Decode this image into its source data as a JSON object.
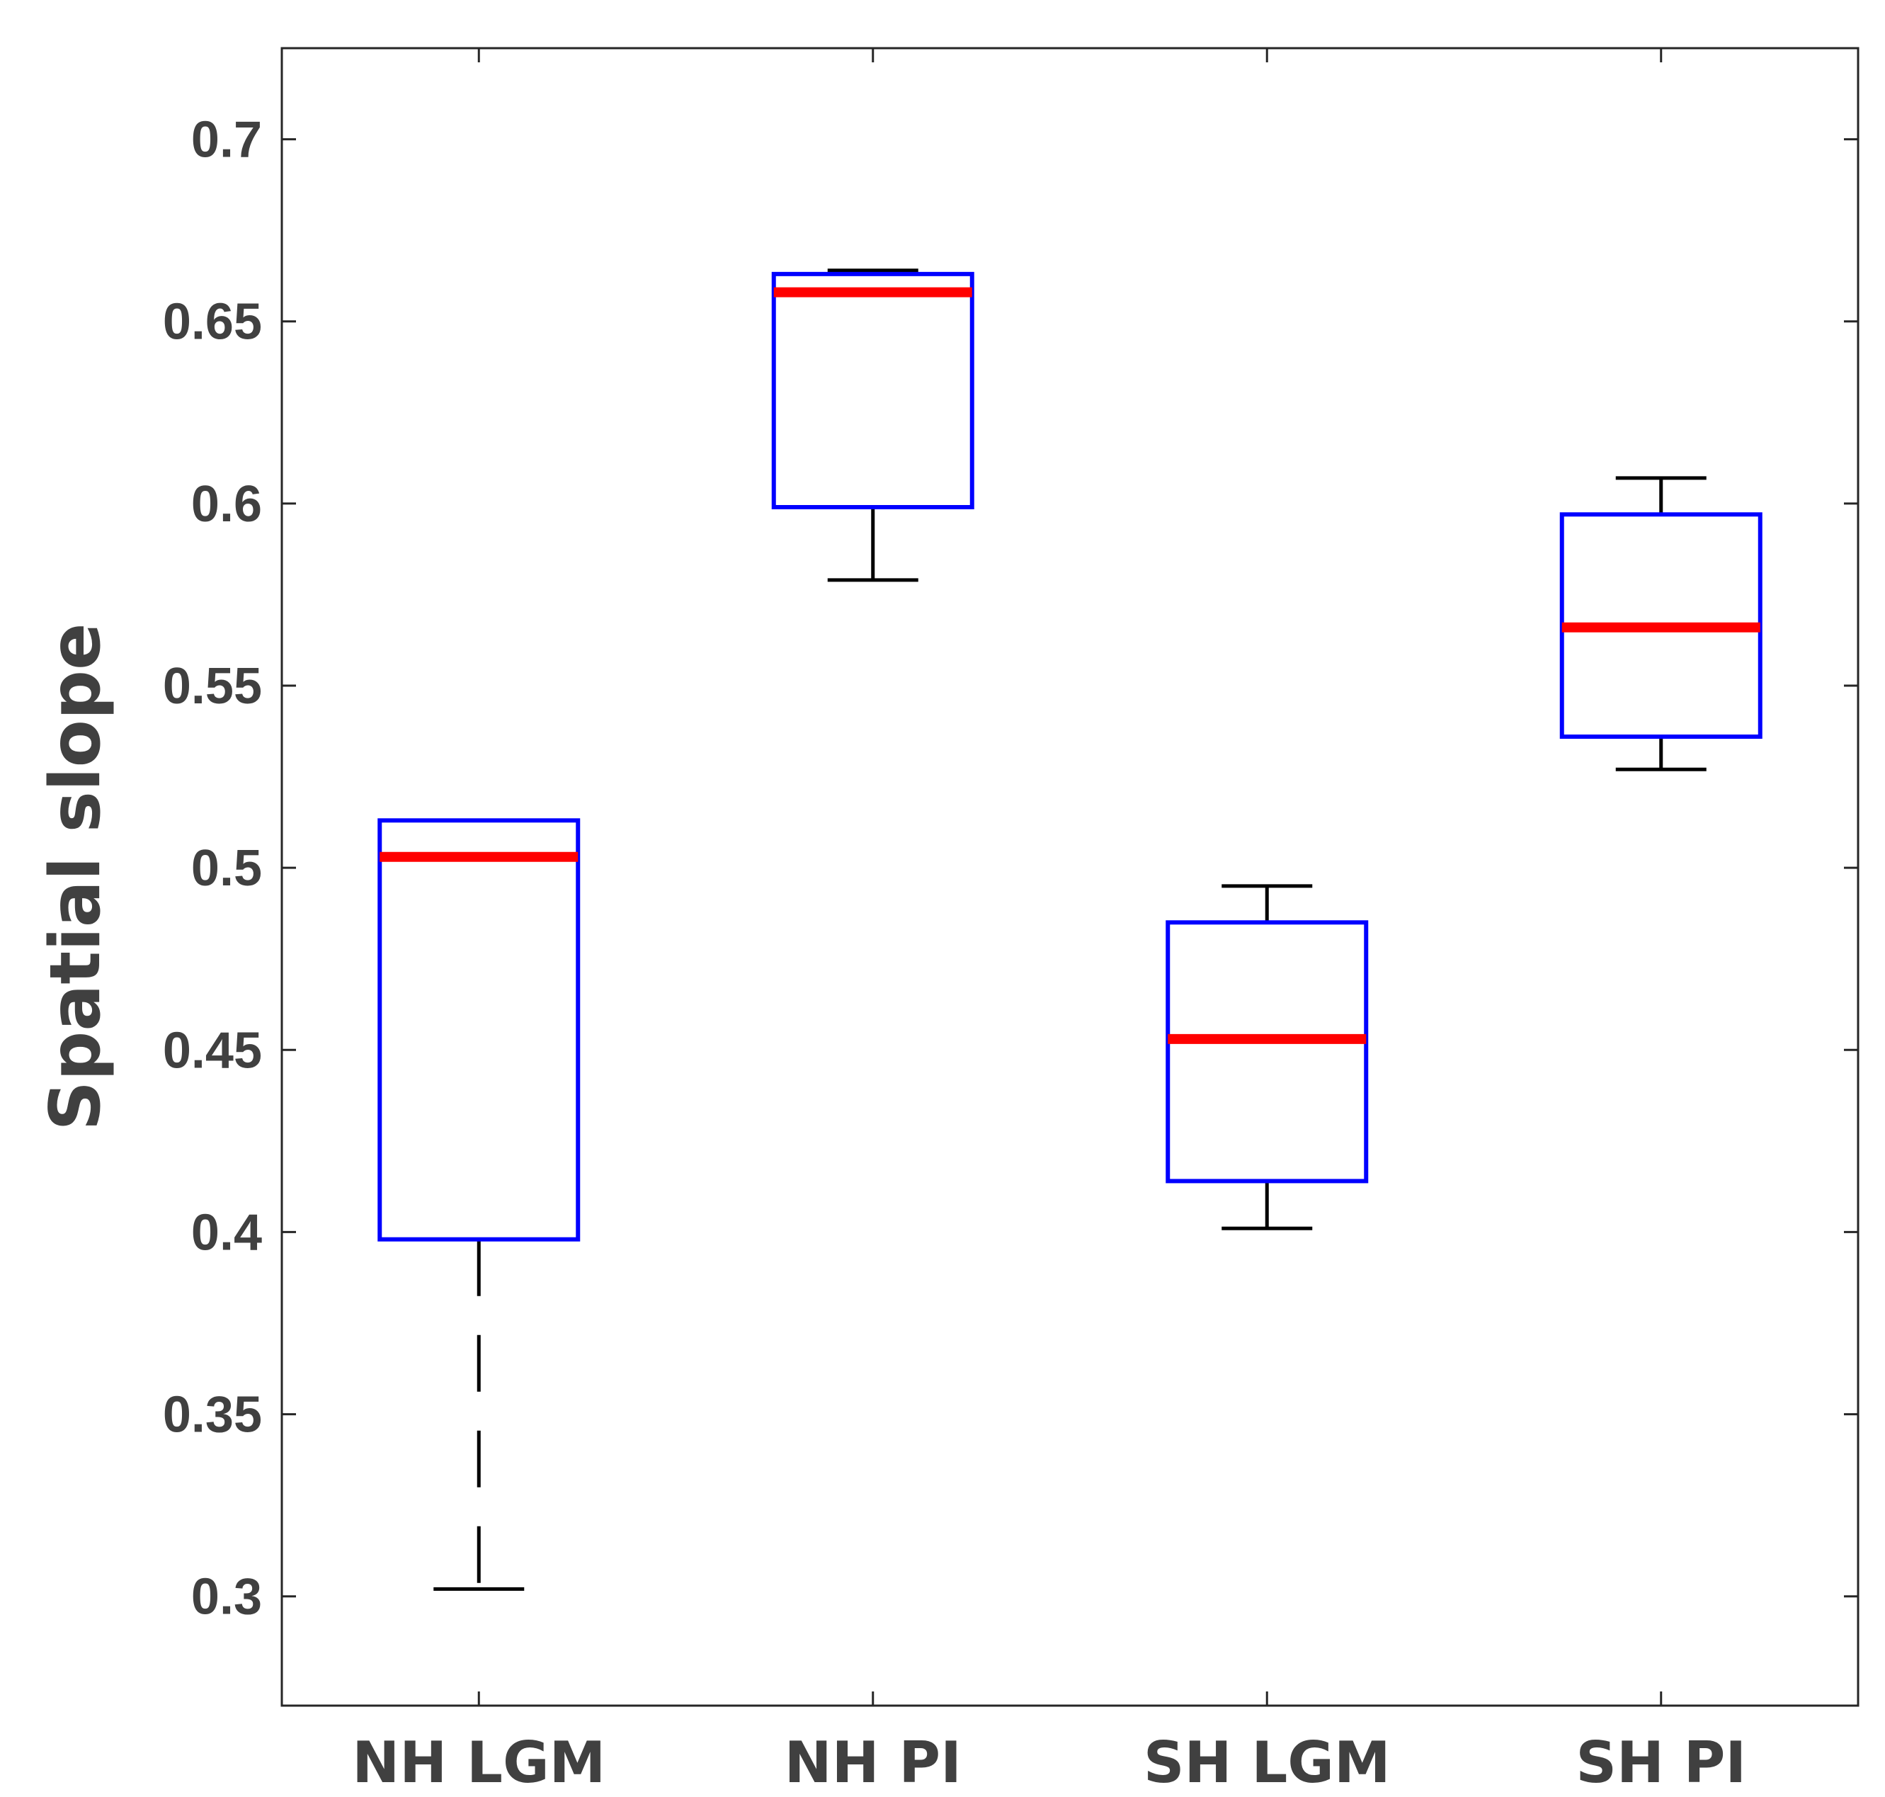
{
  "chart_data": {
    "type": "box",
    "title": "",
    "xlabel": "",
    "ylabel": "Spatial slope",
    "ylim": [
      0.27,
      0.725
    ],
    "yticks": [
      "0.3",
      "0.35",
      "0.4",
      "0.45",
      "0.5",
      "0.55",
      "0.6",
      "0.65",
      "0.7"
    ],
    "categories": [
      "NH LGM",
      "NH PI",
      "SH LGM",
      "SH PI"
    ],
    "boxes": [
      {
        "name": "NH LGM",
        "whisker_low": 0.302,
        "q1": 0.398,
        "median": 0.503,
        "q3": 0.513,
        "whisker_high": 0.513,
        "lower_whisker_style": "dashed"
      },
      {
        "name": "NH PI",
        "whisker_low": 0.579,
        "q1": 0.599,
        "median": 0.658,
        "q3": 0.663,
        "whisker_high": 0.664,
        "lower_whisker_style": "solid"
      },
      {
        "name": "SH LGM",
        "whisker_low": 0.401,
        "q1": 0.414,
        "median": 0.453,
        "q3": 0.485,
        "whisker_high": 0.495,
        "lower_whisker_style": "solid"
      },
      {
        "name": "SH PI",
        "whisker_low": 0.527,
        "q1": 0.536,
        "median": 0.566,
        "q3": 0.597,
        "whisker_high": 0.607,
        "lower_whisker_style": "solid"
      }
    ],
    "colors": {
      "box": "#0000ff",
      "median": "#ff0000",
      "whisker": "#000000",
      "axis": "#262626",
      "text": "#404040"
    },
    "grid": false
  }
}
